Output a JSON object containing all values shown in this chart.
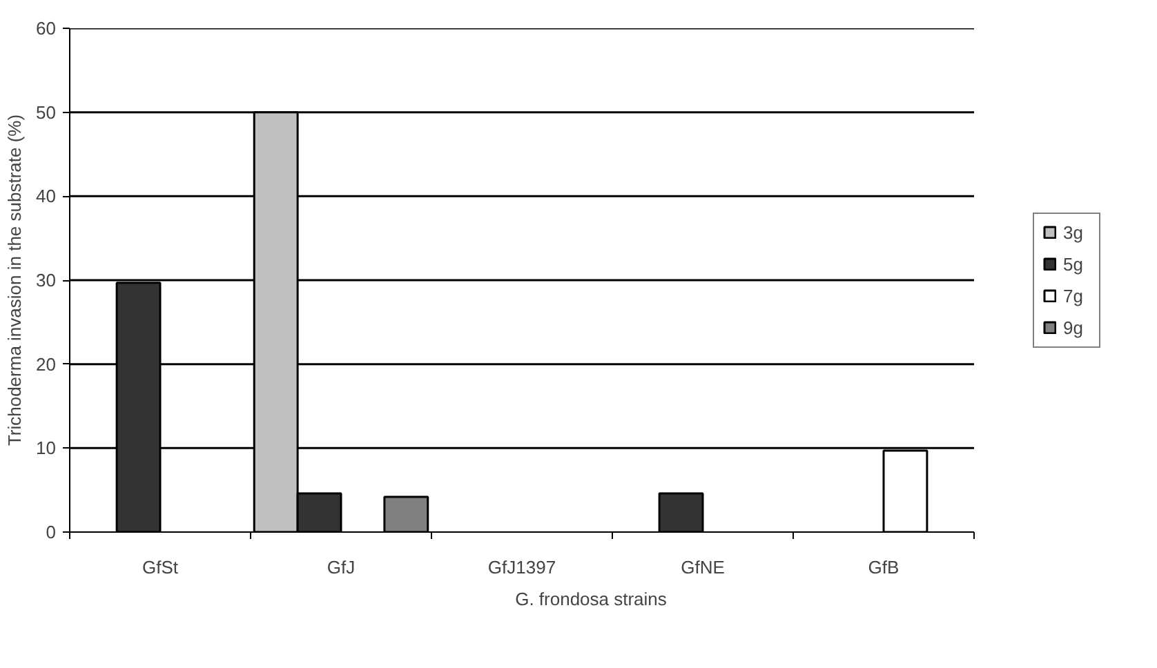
{
  "chart_data": {
    "type": "bar",
    "xlabel": "G. frondosa strains",
    "ylabel": "Trichoderma invasion in the substrate (%)",
    "categories": [
      "GfSt",
      "GfJ",
      "GfJ1397",
      "GfNE",
      "GfB"
    ],
    "series": [
      {
        "name": "3g",
        "color": "#c0c0c0",
        "values": [
          null,
          50,
          null,
          null,
          null
        ]
      },
      {
        "name": "5g",
        "color": "#333333",
        "values": [
          29.7,
          4.6,
          null,
          4.6,
          null
        ]
      },
      {
        "name": "7g",
        "color": "#ffffff",
        "values": [
          null,
          null,
          null,
          null,
          9.7
        ]
      },
      {
        "name": "9g",
        "color": "#808080",
        "values": [
          null,
          4.2,
          null,
          null,
          null
        ]
      }
    ],
    "ylim": [
      0,
      60
    ],
    "yticks": [
      0,
      10,
      20,
      30,
      40,
      50,
      60
    ],
    "grid": "y",
    "legend": "right"
  }
}
